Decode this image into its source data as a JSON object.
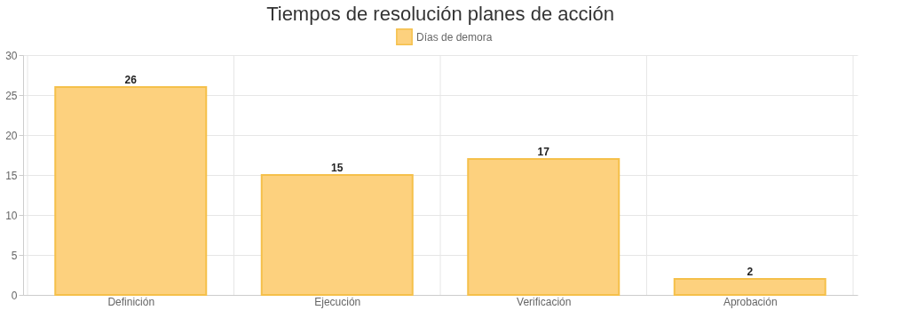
{
  "chart_data": {
    "type": "bar",
    "title": "Tiempos de resolución planes de acción",
    "categories": [
      "Definición",
      "Ejecución",
      "Verificación",
      "Aprobación"
    ],
    "series": [
      {
        "name": "Días de demora",
        "color": "#fdd17e",
        "values": [
          26,
          15,
          17,
          2
        ]
      }
    ],
    "ylim": [
      0,
      30
    ],
    "yticks": [
      0,
      5,
      10,
      15,
      20,
      25,
      30
    ],
    "grid": true,
    "legend": "top",
    "data_labels": true
  }
}
